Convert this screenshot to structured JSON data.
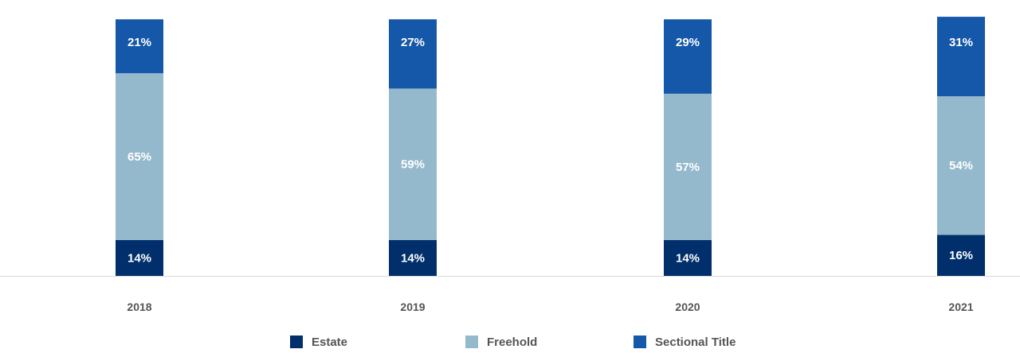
{
  "chart_data": {
    "type": "bar",
    "stacked": true,
    "categories": [
      "2018",
      "2019",
      "2020",
      "2021"
    ],
    "series": [
      {
        "name": "Estate",
        "color": "#002f6c",
        "values": [
          14,
          14,
          14,
          16
        ]
      },
      {
        "name": "Freehold",
        "color": "#95b9cc",
        "values": [
          65,
          59,
          57,
          54
        ]
      },
      {
        "name": "Sectional Title",
        "color": "#1557a8",
        "values": [
          21,
          27,
          29,
          31
        ]
      }
    ],
    "value_suffix": "%",
    "legend_position": "bottom",
    "grid": false
  }
}
